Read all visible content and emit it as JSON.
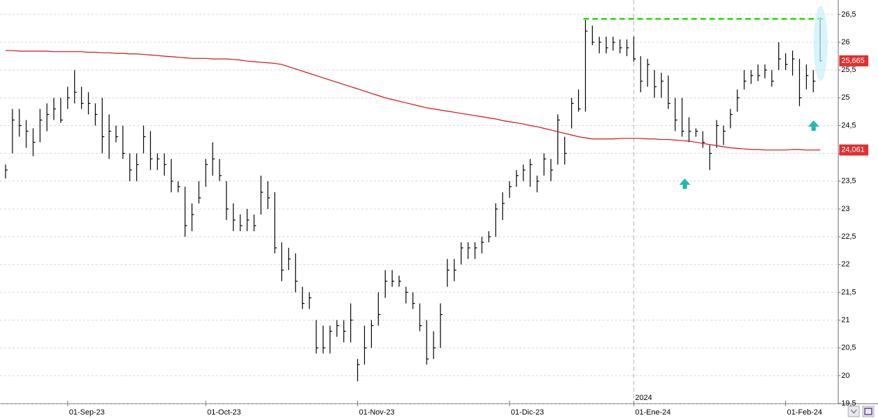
{
  "chart_data": {
    "type": "ohlc",
    "categories": [
      null,
      null,
      null,
      null,
      null,
      null,
      null,
      null,
      null,
      "01-Sep-23",
      null,
      null,
      null,
      null,
      null,
      null,
      null,
      null,
      null,
      null,
      null,
      null,
      null,
      null,
      null,
      null,
      null,
      null,
      null,
      "01-Oct-23",
      null,
      null,
      null,
      null,
      null,
      null,
      null,
      null,
      null,
      null,
      null,
      null,
      null,
      null,
      null,
      null,
      null,
      null,
      null,
      null,
      null,
      "01-Nov-23",
      null,
      null,
      null,
      null,
      null,
      null,
      null,
      null,
      null,
      null,
      null,
      null,
      null,
      null,
      null,
      null,
      null,
      null,
      null,
      null,
      null,
      "01-Dic-23",
      null,
      null,
      null,
      null,
      null,
      null,
      null,
      null,
      null,
      null,
      null,
      null,
      null,
      null,
      null,
      null,
      null,
      "01-Ene-24",
      null,
      null,
      null,
      null,
      null,
      null,
      null,
      null,
      null,
      null,
      null,
      null,
      null,
      null,
      null,
      null,
      null,
      null,
      null,
      null,
      null,
      "01-Feb-24",
      null,
      null,
      null,
      null,
      null
    ],
    "high": [
      23.8,
      24.8,
      24.8,
      24.6,
      24.45,
      24.8,
      24.9,
      25.0,
      25.0,
      25.2,
      25.5,
      25.2,
      25.1,
      24.9,
      25.0,
      24.7,
      24.5,
      24.5,
      24.0,
      24.0,
      24.5,
      24.4,
      24.0,
      24.0,
      23.9,
      23.5,
      23.4,
      23.1,
      23.5,
      23.9,
      24.2,
      23.9,
      23.5,
      23.1,
      22.9,
      23.0,
      22.9,
      23.6,
      23.5,
      23.3,
      22.4,
      22.3,
      22.2,
      21.6,
      21.5,
      21.0,
      20.9,
      20.9,
      21.0,
      21.0,
      21.3,
      20.3,
      20.9,
      21.0,
      21.5,
      21.9,
      21.9,
      21.8,
      21.6,
      21.5,
      21.3,
      21.0,
      20.8,
      21.3,
      22.1,
      22.1,
      22.4,
      22.4,
      22.4,
      22.5,
      22.6,
      23.1,
      23.3,
      23.5,
      23.7,
      23.8,
      23.9,
      23.6,
      24.0,
      23.9,
      24.7,
      24.3,
      25.0,
      25.15,
      26.4,
      26.3,
      26.1,
      26.1,
      26.1,
      26.05,
      26.05,
      26.1,
      25.75,
      25.7,
      25.5,
      25.45,
      25.4,
      25.0,
      25.0,
      24.65,
      24.45,
      24.4,
      24.15,
      24.6,
      24.5,
      24.8,
      25.15,
      25.5,
      25.5,
      25.6,
      25.6,
      25.5,
      26.0,
      25.8,
      25.85,
      25.7,
      25.6,
      25.5,
      26.45
    ],
    "low": [
      23.55,
      24.0,
      24.3,
      24.1,
      23.95,
      24.2,
      24.4,
      24.6,
      24.55,
      24.8,
      24.9,
      24.8,
      24.7,
      24.5,
      24.0,
      23.9,
      24.2,
      23.9,
      23.5,
      23.5,
      24.0,
      23.7,
      23.7,
      23.6,
      23.3,
      23.3,
      22.5,
      22.6,
      23.1,
      23.4,
      23.6,
      23.5,
      22.8,
      22.6,
      22.6,
      22.6,
      22.6,
      22.9,
      23.0,
      22.2,
      21.7,
      21.9,
      21.5,
      21.2,
      21.2,
      20.4,
      20.4,
      20.4,
      20.7,
      20.6,
      20.6,
      19.9,
      20.2,
      20.5,
      20.9,
      21.4,
      21.6,
      21.6,
      21.3,
      21.2,
      20.8,
      20.2,
      20.3,
      20.5,
      21.6,
      21.7,
      22.0,
      22.1,
      22.1,
      22.2,
      22.4,
      22.5,
      22.8,
      23.2,
      23.4,
      23.5,
      23.4,
      23.3,
      23.6,
      23.5,
      23.8,
      23.8,
      24.45,
      24.75,
      24.75,
      25.95,
      25.8,
      25.8,
      25.85,
      25.8,
      25.75,
      25.65,
      25.1,
      25.2,
      25.0,
      25.0,
      24.8,
      24.4,
      24.3,
      24.2,
      24.3,
      24.1,
      23.7,
      24.1,
      24.15,
      24.45,
      24.75,
      25.15,
      25.25,
      25.3,
      25.35,
      25.2,
      25.5,
      25.5,
      25.4,
      24.85,
      25.15,
      25.1,
      25.65
    ],
    "close": [
      23.7,
      24.6,
      24.5,
      24.4,
      24.2,
      24.6,
      24.7,
      24.8,
      24.6,
      25.0,
      25.1,
      24.9,
      24.9,
      24.7,
      24.3,
      24.4,
      24.3,
      24.0,
      23.7,
      23.8,
      24.3,
      23.9,
      23.9,
      23.8,
      23.5,
      23.4,
      22.7,
      22.9,
      23.2,
      23.8,
      23.9,
      23.6,
      23.0,
      22.8,
      22.7,
      22.8,
      22.7,
      23.3,
      23.2,
      22.3,
      21.9,
      22.1,
      21.7,
      21.3,
      21.4,
      20.5,
      20.5,
      20.8,
      20.9,
      20.8,
      21.0,
      20.2,
      20.5,
      20.9,
      21.1,
      21.7,
      21.7,
      21.7,
      21.5,
      21.3,
      20.9,
      20.3,
      20.5,
      21.1,
      21.9,
      21.9,
      22.3,
      22.3,
      22.3,
      22.4,
      22.5,
      23.0,
      23.1,
      23.4,
      23.6,
      23.7,
      23.8,
      23.5,
      23.9,
      23.7,
      24.6,
      24.0,
      24.9,
      24.8,
      26.2,
      26.0,
      26.0,
      25.9,
      26.0,
      25.9,
      25.9,
      25.7,
      25.3,
      25.6,
      25.2,
      25.3,
      24.9,
      24.6,
      24.4,
      24.4,
      24.4,
      24.2,
      24.0,
      24.5,
      24.4,
      24.7,
      25.0,
      25.3,
      25.4,
      25.4,
      25.5,
      25.3,
      25.7,
      25.6,
      25.7,
      25.0,
      25.4,
      25.3,
      25.665
    ],
    "bar_color": "#000000",
    "moving_average": {
      "color": "#d0101a",
      "values": [
        25.85,
        25.85,
        25.84,
        25.84,
        25.84,
        25.84,
        25.84,
        25.83,
        25.83,
        25.83,
        25.83,
        25.83,
        25.82,
        25.82,
        25.81,
        25.81,
        25.8,
        25.8,
        25.79,
        25.79,
        25.78,
        25.77,
        25.76,
        25.75,
        25.74,
        25.73,
        25.72,
        25.71,
        25.71,
        25.71,
        25.7,
        25.7,
        25.7,
        25.69,
        25.68,
        25.66,
        25.65,
        25.64,
        25.63,
        25.62,
        25.6,
        25.56,
        25.52,
        25.48,
        25.44,
        25.4,
        25.36,
        25.32,
        25.28,
        25.24,
        25.2,
        25.16,
        25.12,
        25.08,
        25.04,
        25.0,
        24.97,
        24.94,
        24.91,
        24.88,
        24.85,
        24.82,
        24.8,
        24.78,
        24.76,
        24.74,
        24.72,
        24.7,
        24.68,
        24.66,
        24.64,
        24.62,
        24.59,
        24.57,
        24.55,
        24.53,
        24.5,
        24.48,
        24.45,
        24.42,
        24.39,
        24.36,
        24.33,
        24.3,
        24.28,
        24.26,
        24.26,
        24.26,
        24.26,
        24.27,
        24.27,
        24.27,
        24.27,
        24.26,
        24.26,
        24.25,
        24.25,
        24.24,
        24.23,
        24.22,
        24.2,
        24.18,
        24.16,
        24.14,
        24.12,
        24.1,
        24.09,
        24.08,
        24.07,
        24.07,
        24.06,
        24.06,
        24.06,
        24.06,
        24.07,
        24.07,
        24.06,
        24.06,
        24.061
      ]
    },
    "resistance": {
      "value": 26.42,
      "color": "#22dd00"
    },
    "price_tags": [
      {
        "value": 25.665,
        "label": "25,665",
        "color": "#e03030"
      },
      {
        "value": 24.061,
        "label": "24,061",
        "color": "#e03030"
      }
    ],
    "year_marker": "2024",
    "ylim": [
      19.5,
      26.76
    ],
    "yticks": [
      {
        "value": 19.5,
        "label": "19,5"
      },
      20,
      {
        "value": 20.5,
        "label": "20,5"
      },
      21,
      {
        "value": 21.5,
        "label": "21,5"
      },
      22,
      {
        "value": 22.5,
        "label": "22,5"
      },
      23,
      {
        "value": 23.5,
        "label": "23,5"
      },
      24,
      {
        "value": 24.5,
        "label": "24,5"
      },
      25,
      {
        "value": 25.5,
        "label": "25,5"
      },
      26,
      {
        "value": 26.5,
        "label": "26,5"
      }
    ],
    "grid": true
  }
}
